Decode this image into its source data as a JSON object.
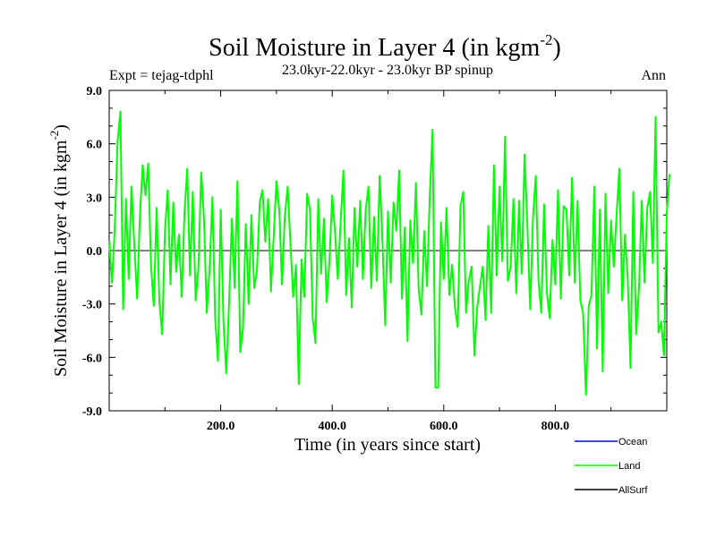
{
  "chart_data": {
    "type": "line",
    "title": "Soil Moisture in Layer 4 (in kgm",
    "title_sup": "-2",
    "title_end": ")",
    "subtitle": "23.0kyr-22.0kyr - 23.0kyr BP spinup",
    "expt_label": "Expt = tejag-tdphl",
    "season_label": "Ann",
    "xlabel": "Time (in years since start)",
    "ylabel": "Soil Moisture in Layer 4 (in kgm",
    "ylabel_sup": "-2",
    "ylabel_end": ")",
    "xlim": [
      0,
      1000
    ],
    "ylim": [
      -9,
      9
    ],
    "xticks": [
      200,
      400,
      600,
      800
    ],
    "xtick_labels": [
      "200.0",
      "400.0",
      "600.0",
      "800.0"
    ],
    "yticks": [
      -9,
      -6,
      -3,
      0,
      3,
      6,
      9
    ],
    "ytick_labels": [
      "-9.0",
      "-6.0",
      "-3.0",
      "0.0",
      "3.0",
      "6.0",
      "9.0"
    ],
    "zero_line": 0,
    "series": [
      {
        "name": "Ocean",
        "color": "#0000ff",
        "values": []
      },
      {
        "name": "Land",
        "color": "#00ff00",
        "x_start": 0,
        "x_step": 5,
        "values": [
          0.5,
          -1.8,
          1.2,
          6.1,
          7.8,
          -3.3,
          2.9,
          -1.6,
          3.6,
          0.4,
          -2.7,
          1.9,
          4.8,
          3.1,
          4.9,
          -0.8,
          -3.1,
          2.4,
          -2.9,
          -4.7,
          1.1,
          3.4,
          -1.9,
          2.7,
          -1.2,
          0.9,
          -2.6,
          2.1,
          4.6,
          -1.4,
          3.3,
          -2.8,
          -1.0,
          4.4,
          1.9,
          -3.5,
          -1.1,
          3.0,
          -3.8,
          -6.2,
          2.3,
          -4.0,
          -6.9,
          -3.0,
          1.8,
          -2.1,
          3.9,
          -5.7,
          -4.4,
          1.5,
          -3.0,
          2.0,
          -2.1,
          -1.1,
          2.7,
          3.4,
          0.5,
          2.9,
          -2.3,
          0.8,
          3.9,
          2.3,
          -1.9,
          1.9,
          3.6,
          0.4,
          -2.6,
          -0.8,
          -7.5,
          -0.5,
          -2.6,
          3.2,
          2.3,
          -3.8,
          -5.2,
          2.9,
          -1.3,
          1.8,
          -2.9,
          -0.6,
          3.1,
          1.1,
          -1.6,
          1.5,
          4.5,
          -2.5,
          0.7,
          -3.2,
          2.4,
          -0.9,
          2.8,
          -1.6,
          2.3,
          3.6,
          -2.1,
          1.9,
          -1.7,
          4.2,
          0.6,
          -4.2,
          2.2,
          -1.8,
          2.7,
          1.1,
          4.5,
          -2.7,
          1.3,
          -5.1,
          1.7,
          -0.7,
          3.8,
          -2.2,
          -3.6,
          1.1,
          -2.0,
          3.1,
          6.8,
          -7.7,
          -7.7,
          1.6,
          -1.6,
          2.4,
          -2.5,
          -0.8,
          -3.2,
          -4.3,
          2.5,
          3.3,
          -3.5,
          -1.7,
          -0.9,
          -5.9,
          -3.2,
          -2.0,
          -0.9,
          -3.9,
          1.4,
          -3.5,
          4.8,
          -1.4,
          3.6,
          -0.6,
          6.4,
          -1.7,
          -0.9,
          2.9,
          -2.4,
          2.8,
          -1.3,
          5.4,
          1.3,
          -3.3,
          1.8,
          4.2,
          -1.7,
          -3.5,
          2.6,
          -2.4,
          -3.8,
          0.6,
          -1.9,
          3.4,
          -2.7,
          2.5,
          2.3,
          -1.4,
          4.1,
          -1.8,
          2.8,
          -2.8,
          -3.5,
          -8.1,
          -3.1,
          -2.5,
          3.6,
          -5.5,
          2.3,
          -6.8,
          3.2,
          -2.4,
          1.7,
          -0.9,
          2.0,
          4.6,
          -2.8,
          0.9,
          -1.6,
          -6.6,
          3.3,
          -4.7,
          -2.2,
          2.8,
          -1.8,
          2.4,
          3.3,
          -0.7,
          7.5,
          -4.6,
          -4.0,
          -5.9,
          2.1,
          4.3
        ]
      },
      {
        "name": "AllSurf",
        "color": "#000000",
        "values": []
      }
    ],
    "legend_position": "bottom-right"
  }
}
